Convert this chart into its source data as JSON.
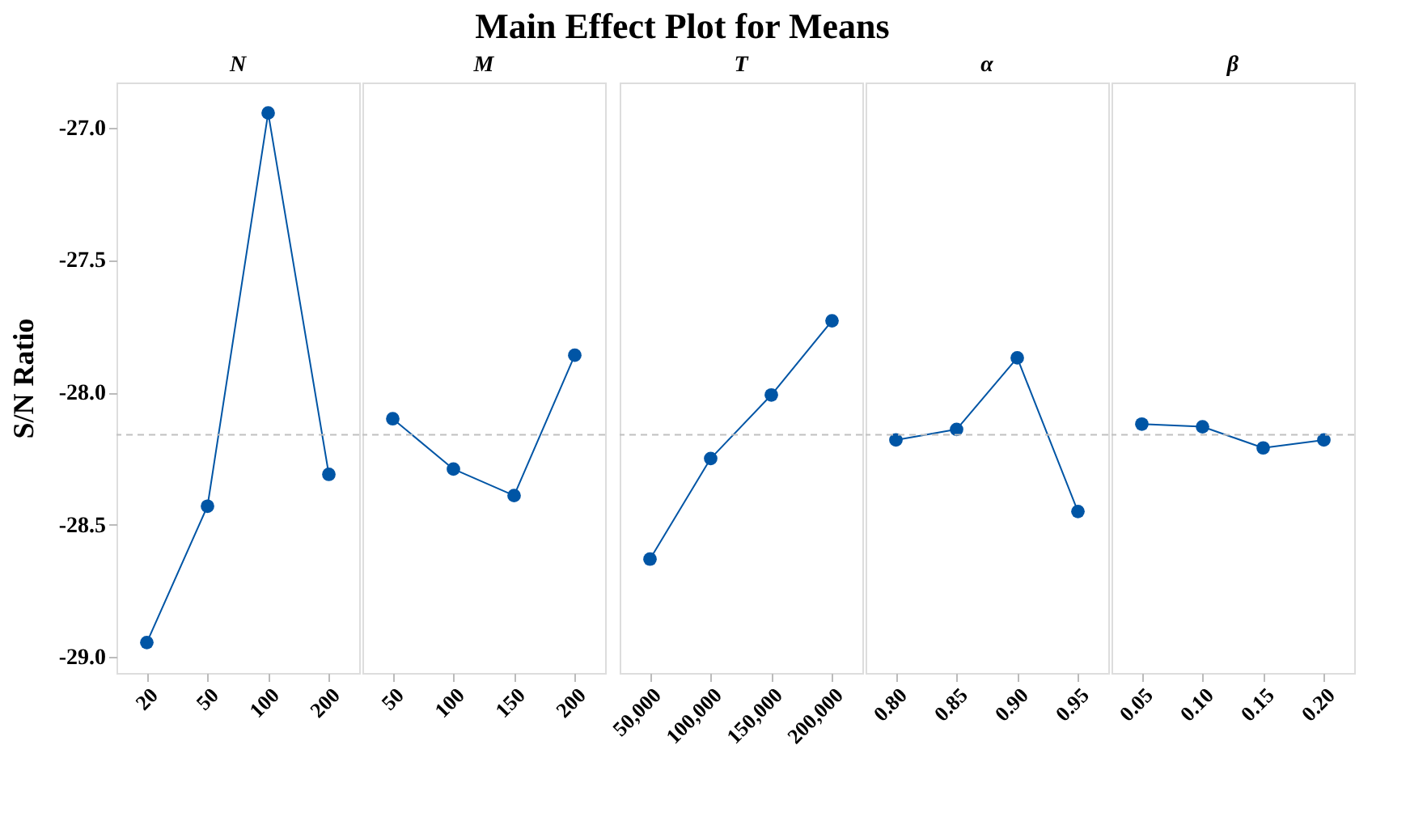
{
  "chart_data": [
    {
      "type": "line",
      "subtitle": "N",
      "ylabel": "S/N Ratio",
      "categories": [
        "20",
        "50",
        "100",
        "200"
      ],
      "series": [
        {
          "color": "#0055a5",
          "values": [
            -28.945,
            -28.43,
            -26.945,
            -28.31
          ]
        }
      ],
      "ylim": [
        -29.06,
        -26.83
      ],
      "yticks": [
        {
          "value": -29,
          "label": "-29.0"
        },
        {
          "value": -28.5,
          "label": "-28.5"
        },
        {
          "value": -28,
          "label": "-28.0"
        },
        {
          "value": -27.5,
          "label": "-27.5"
        },
        {
          "value": -27,
          "label": "-27.0"
        }
      ],
      "marker": "circle",
      "line_style": "solid",
      "grid": false,
      "ref_lines": [
        {
          "axis": "y",
          "value": -28.16,
          "color": "#c0c0c0",
          "line_style": "dashed"
        }
      ]
    },
    {
      "type": "line",
      "subtitle": "M",
      "categories": [
        "50",
        "100",
        "150",
        "200"
      ],
      "series": [
        {
          "color": "#0055a5",
          "values": [
            -28.1,
            -28.29,
            -28.39,
            -27.86
          ]
        }
      ],
      "ylim": [
        -29.06,
        -26.83
      ],
      "tick_labels": "x",
      "marker": "circle",
      "line_style": "solid",
      "grid": false,
      "ref_lines": [
        {
          "axis": "y",
          "value": -28.16,
          "color": "#c0c0c0",
          "line_style": "dashed"
        }
      ]
    },
    {
      "type": "line",
      "title": "Main Effect Plot for Means",
      "subtitle": "T",
      "categories": [
        "50,000",
        "100,000",
        "150,000",
        "200,000"
      ],
      "series": [
        {
          "color": "#0055a5",
          "values": [
            -28.63,
            -28.25,
            -28.01,
            -27.73
          ]
        }
      ],
      "ylim": [
        -29.06,
        -26.83
      ],
      "tick_labels": "x",
      "marker": "circle",
      "line_style": "solid",
      "grid": false,
      "ref_lines": [
        {
          "axis": "y",
          "value": -28.16,
          "color": "#c0c0c0",
          "line_style": "dashed"
        }
      ]
    },
    {
      "type": "line",
      "subtitle": "α",
      "categories": [
        "0.80",
        "0.85",
        "0.90",
        "0.95"
      ],
      "series": [
        {
          "color": "#0055a5",
          "values": [
            -28.18,
            -28.14,
            -27.87,
            -28.45
          ]
        }
      ],
      "ylim": [
        -29.06,
        -26.83
      ],
      "tick_labels": "x",
      "marker": "circle",
      "line_style": "solid",
      "grid": false,
      "ref_lines": [
        {
          "axis": "y",
          "value": -28.16,
          "color": "#c0c0c0",
          "line_style": "dashed"
        }
      ]
    },
    {
      "type": "line",
      "subtitle": "β",
      "categories": [
        "0.05",
        "0.10",
        "0.15",
        "0.20"
      ],
      "series": [
        {
          "color": "#0055a5",
          "values": [
            -28.12,
            -28.13,
            -28.21,
            -28.18
          ]
        }
      ],
      "ylim": [
        -29.06,
        -26.83
      ],
      "tick_labels": "x",
      "marker": "circle",
      "line_style": "solid",
      "grid": false,
      "ref_lines": [
        {
          "axis": "y",
          "value": -28.16,
          "color": "#c0c0c0",
          "line_style": "dashed"
        }
      ]
    }
  ]
}
